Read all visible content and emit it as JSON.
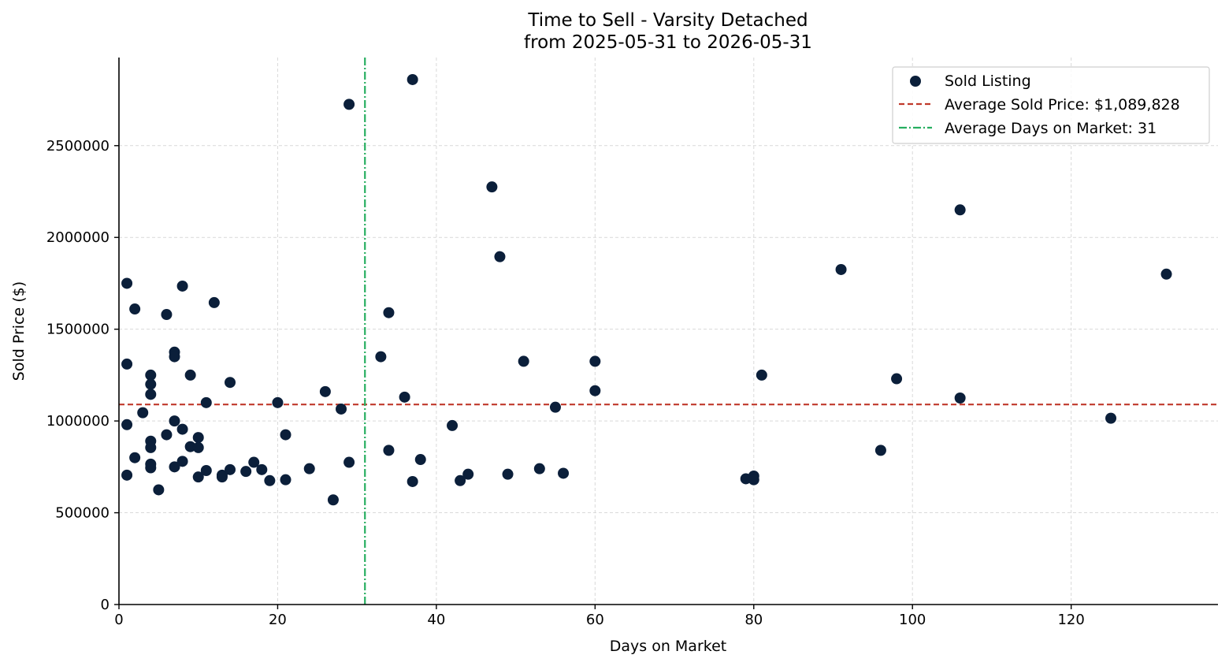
{
  "chart_data": {
    "type": "scatter",
    "title_line1": "Time to Sell - Varsity Detached",
    "title_line2": "from 2025-05-31 to 2026-05-31",
    "xlabel": "Days on Market",
    "ylabel": "Sold Price ($)",
    "xlim": [
      0,
      138.5
    ],
    "ylim": [
      0,
      2980000
    ],
    "xticks": [
      0,
      20,
      40,
      60,
      80,
      100,
      120
    ],
    "xtick_labels": [
      "0",
      "20",
      "40",
      "60",
      "80",
      "100",
      "120"
    ],
    "yticks": [
      0,
      500000,
      1000000,
      1500000,
      2000000,
      2500000
    ],
    "ytick_labels": [
      "0",
      "500000",
      "1000000",
      "1500000",
      "2000000",
      "2500000"
    ],
    "grid": true,
    "legend_position": "top-right",
    "colors": {
      "points": "#0b1f3a",
      "avg_price": "#c0392b",
      "avg_days": "#27ae60"
    },
    "series": [
      {
        "name": "Sold Listing",
        "points": [
          [
            1,
            1750000
          ],
          [
            1,
            1310000
          ],
          [
            1,
            980000
          ],
          [
            1,
            705000
          ],
          [
            2,
            1610000
          ],
          [
            2,
            800000
          ],
          [
            3,
            1045000
          ],
          [
            4,
            1250000
          ],
          [
            4,
            1200000
          ],
          [
            4,
            1145000
          ],
          [
            4,
            890000
          ],
          [
            4,
            855000
          ],
          [
            4,
            765000
          ],
          [
            4,
            745000
          ],
          [
            5,
            625000
          ],
          [
            6,
            1580000
          ],
          [
            6,
            925000
          ],
          [
            7,
            1375000
          ],
          [
            7,
            1350000
          ],
          [
            7,
            1000000
          ],
          [
            7,
            750000
          ],
          [
            8,
            1735000
          ],
          [
            8,
            955000
          ],
          [
            8,
            780000
          ],
          [
            9,
            1250000
          ],
          [
            9,
            860000
          ],
          [
            10,
            910000
          ],
          [
            10,
            855000
          ],
          [
            10,
            695000
          ],
          [
            11,
            1100000
          ],
          [
            11,
            730000
          ],
          [
            12,
            1645000
          ],
          [
            13,
            705000
          ],
          [
            13,
            695000
          ],
          [
            14,
            1210000
          ],
          [
            14,
            735000
          ],
          [
            16,
            725000
          ],
          [
            17,
            775000
          ],
          [
            18,
            735000
          ],
          [
            19,
            675000
          ],
          [
            20,
            1100000
          ],
          [
            21,
            925000
          ],
          [
            21,
            680000
          ],
          [
            24,
            740000
          ],
          [
            26,
            1160000
          ],
          [
            27,
            570000
          ],
          [
            28,
            1065000
          ],
          [
            29,
            2725000
          ],
          [
            29,
            775000
          ],
          [
            33,
            1350000
          ],
          [
            34,
            1590000
          ],
          [
            34,
            840000
          ],
          [
            36,
            1130000
          ],
          [
            37,
            2860000
          ],
          [
            37,
            670000
          ],
          [
            38,
            790000
          ],
          [
            42,
            975000
          ],
          [
            43,
            675000
          ],
          [
            44,
            710000
          ],
          [
            47,
            2275000
          ],
          [
            48,
            1895000
          ],
          [
            49,
            710000
          ],
          [
            51,
            1325000
          ],
          [
            53,
            740000
          ],
          [
            55,
            1075000
          ],
          [
            56,
            715000
          ],
          [
            60,
            1325000
          ],
          [
            60,
            1165000
          ],
          [
            79,
            685000
          ],
          [
            80,
            700000
          ],
          [
            80,
            680000
          ],
          [
            81,
            1250000
          ],
          [
            91,
            1825000
          ],
          [
            96,
            840000
          ],
          [
            98,
            1230000
          ],
          [
            106,
            2150000
          ],
          [
            106,
            1125000
          ],
          [
            125,
            1015000
          ],
          [
            132,
            1800000
          ]
        ]
      }
    ],
    "avg_price": {
      "label": "Average Sold Price: $1,089,828",
      "value": 1089828
    },
    "avg_days": {
      "label": "Average Days on Market: 31",
      "value": 31
    }
  }
}
